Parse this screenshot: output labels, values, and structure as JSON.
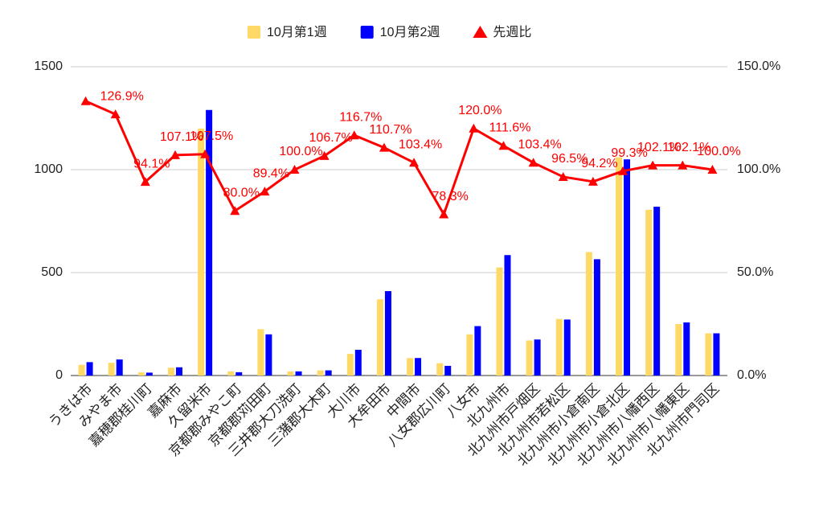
{
  "chart_data": {
    "type": "bar_line",
    "categories": [
      "うきは市",
      "みやま市",
      "嘉穂郡桂川町",
      "嘉麻市",
      "久留米市",
      "京都郡みやこ町",
      "京都郡苅田町",
      "三井郡大刀洗町",
      "三潴郡大木町",
      "大川市",
      "大牟田市",
      "中間市",
      "八女郡広川町",
      "八女市",
      "北九州市",
      "北九州市戸畑区",
      "北九州市若松区",
      "北九州市小倉南区",
      "北九州市小倉北区",
      "北九州市八幡西区",
      "北九州市八幡東区",
      "北九州市門司区"
    ],
    "series": [
      {
        "name": "10月第1週",
        "color": "#ffd966",
        "values": [
          52,
          62,
          15,
          38,
          1200,
          20,
          225,
          20,
          25,
          105,
          370,
          85,
          60,
          200,
          525,
          170,
          275,
          600,
          1060,
          805,
          250,
          205
        ]
      },
      {
        "name": "10月第2週",
        "color": "#0000ff",
        "values": [
          65,
          78,
          14,
          40,
          1290,
          16,
          200,
          20,
          25,
          125,
          410,
          85,
          47,
          240,
          585,
          175,
          272,
          565,
          1050,
          820,
          258,
          205
        ]
      },
      {
        "name": "先週比",
        "color": "#ff0000",
        "axis": "y2",
        "values": [
          133.3,
          126.9,
          94.1,
          107.1,
          107.5,
          80.0,
          89.4,
          100.0,
          106.7,
          116.7,
          110.7,
          103.4,
          78.3,
          120.0,
          111.6,
          103.4,
          96.5,
          94.2,
          99.3,
          102.1,
          102.1,
          100.0
        ],
        "value_labels": [
          null,
          "126.9%",
          "94.1%",
          "107.1%",
          "107.5%",
          "80.0%",
          "89.4%",
          "100.0%",
          "106.7%",
          "116.7%",
          "110.7%",
          "103.4%",
          "78.3%",
          "120.0%",
          "111.6%",
          "103.4%",
          "96.5%",
          "94.2%",
          "99.3%",
          "102.1%",
          "102.1%",
          "100.0%"
        ]
      }
    ],
    "ylim": [
      0,
      1500
    ],
    "yticks": [
      0,
      500,
      1000,
      1500
    ],
    "y2lim": [
      0,
      150
    ],
    "y2ticks": [
      {
        "value": 0,
        "label": "0.0%"
      },
      {
        "value": 50,
        "label": "50.0%"
      },
      {
        "value": 100,
        "label": "100.0%"
      },
      {
        "value": 150,
        "label": "150.0%"
      }
    ],
    "grid": true,
    "legend": "top"
  }
}
